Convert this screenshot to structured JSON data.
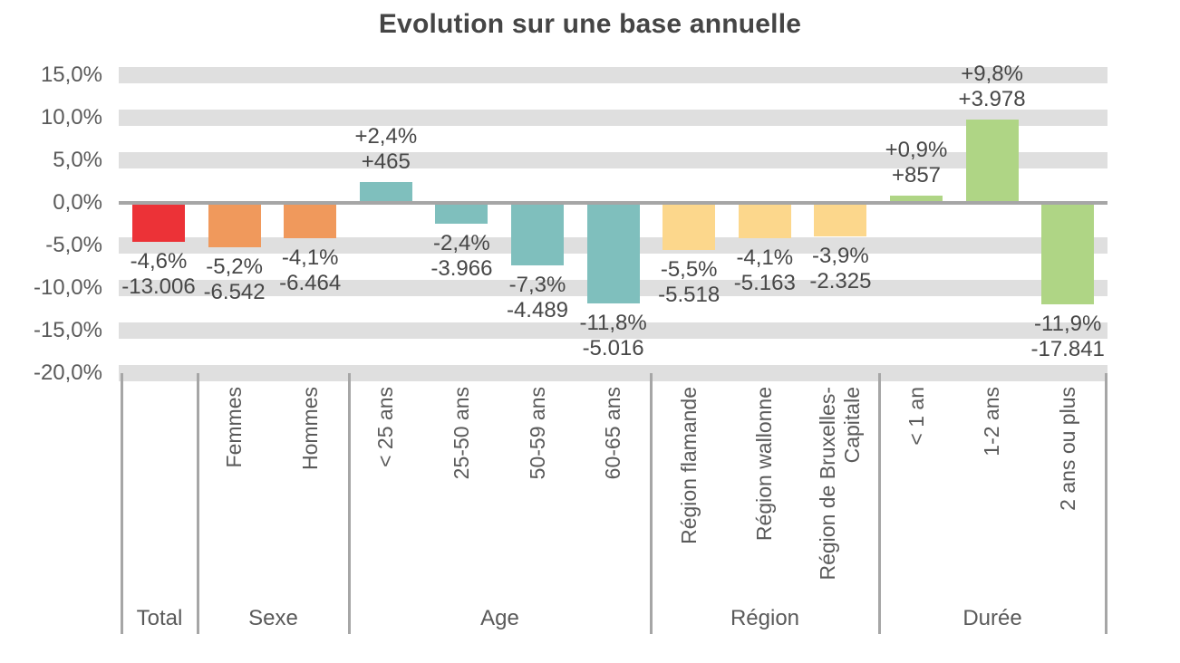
{
  "title": "Evolution sur une base annuelle",
  "colors": {
    "total": "#EC3237",
    "sexe": "#F0995C",
    "age": "#7FBFBD",
    "region": "#FCD78C",
    "duree": "#AFD585",
    "gridline": "#DFDFDF",
    "axis_line": "#A6A6A6",
    "value_text": "#474747",
    "axis_text": "#5A5A5A",
    "title_text": "#454545"
  },
  "chart_data": {
    "type": "bar",
    "title": "Evolution sur une base annuelle",
    "xlabel": "",
    "ylabel": "",
    "legend": "none",
    "grid": "on",
    "y_axis": {
      "unit": "percent",
      "min": -20,
      "max": 15,
      "step": 5,
      "tick_values": [
        15,
        10,
        5,
        0,
        -5,
        -10,
        -15,
        -20
      ],
      "tick_labels": [
        "15,0%",
        "10,0%",
        "5,0%",
        "0,0%",
        "-5,0%",
        "-10,0%",
        "-15,0%",
        "-20,0%"
      ]
    },
    "groups": [
      {
        "label": "Total",
        "color_key": "total",
        "bars": [
          {
            "category": "",
            "value_pct": -4.6,
            "pct_label": "-4,6%",
            "abs_label": "-13.006",
            "abs_value": -13006
          }
        ]
      },
      {
        "label": "Sexe",
        "color_key": "sexe",
        "bars": [
          {
            "category": "Femmes",
            "value_pct": -5.2,
            "pct_label": "-5,2%",
            "abs_label": "-6.542",
            "abs_value": -6542
          },
          {
            "category": "Hommes",
            "value_pct": -4.1,
            "pct_label": "-4,1%",
            "abs_label": "-6.464",
            "abs_value": -6464
          }
        ]
      },
      {
        "label": "Age",
        "color_key": "age",
        "bars": [
          {
            "category": "< 25 ans",
            "value_pct": 2.4,
            "pct_label": "+2,4%",
            "abs_label": "+465",
            "abs_value": 465
          },
          {
            "category": "25-50 ans",
            "value_pct": -2.4,
            "pct_label": "-2,4%",
            "abs_label": "-3.966",
            "abs_value": -3966
          },
          {
            "category": "50-59 ans",
            "value_pct": -7.3,
            "pct_label": "-7,3%",
            "abs_label": "-4.489",
            "abs_value": -4489
          },
          {
            "category": "60-65 ans",
            "value_pct": -11.8,
            "pct_label": "-11,8%",
            "abs_label": "-5.016",
            "abs_value": -5016
          }
        ]
      },
      {
        "label": "Région",
        "color_key": "region",
        "bars": [
          {
            "category": "Région flamande",
            "value_pct": -5.5,
            "pct_label": "-5,5%",
            "abs_label": "-5.518",
            "abs_value": -5518
          },
          {
            "category": "Région wallonne",
            "value_pct": -4.1,
            "pct_label": "-4,1%",
            "abs_label": "-5.163",
            "abs_value": -5163
          },
          {
            "category": "Région de Bruxelles-\nCapitale",
            "value_pct": -3.9,
            "pct_label": "-3,9%",
            "abs_label": "-2.325",
            "abs_value": -2325
          }
        ]
      },
      {
        "label": "Durée",
        "color_key": "duree",
        "bars": [
          {
            "category": "< 1 an",
            "value_pct": 0.9,
            "pct_label": "+0,9%",
            "abs_label": "+857",
            "abs_value": 857
          },
          {
            "category": "1-2 ans",
            "value_pct": 9.8,
            "pct_label": "+9,8%",
            "abs_label": "+3.978",
            "abs_value": 3978
          },
          {
            "category": "2 ans ou plus",
            "value_pct": -11.9,
            "pct_label": "-11,9%",
            "abs_label": "-17.841",
            "abs_value": -17841
          }
        ]
      }
    ]
  }
}
